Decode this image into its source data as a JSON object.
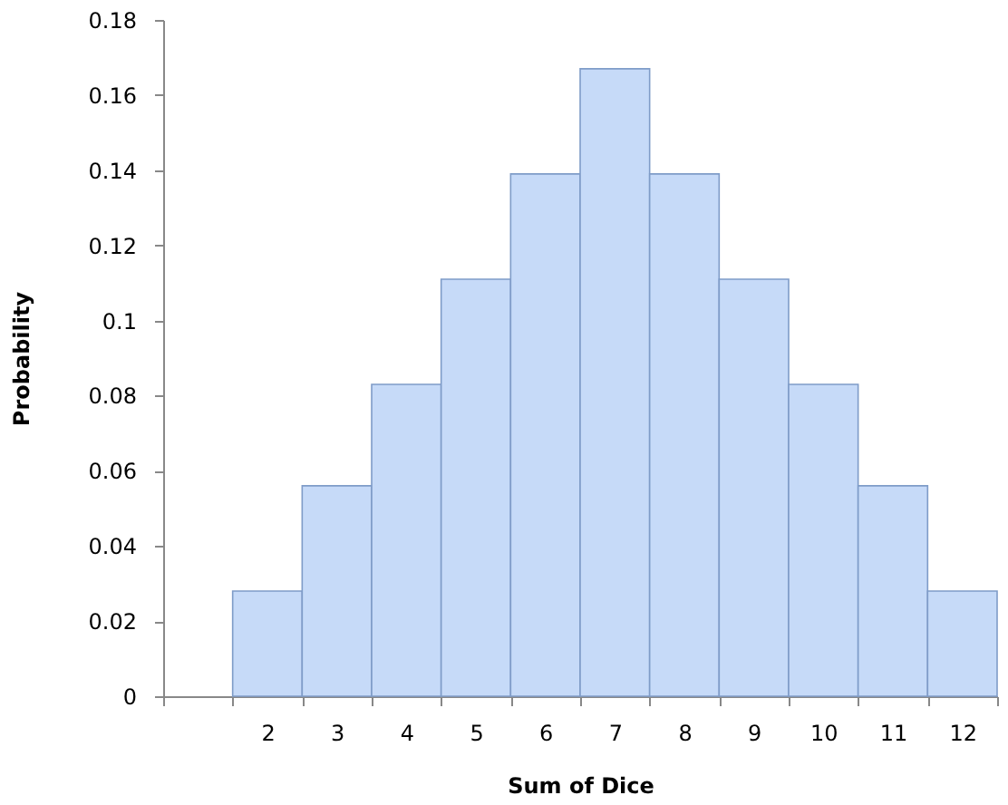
{
  "chart_data": {
    "type": "bar",
    "xlabel": "Sum of Dice",
    "ylabel": "Probability",
    "categories": [
      null,
      "2",
      "3",
      "4",
      "5",
      "6",
      "7",
      "8",
      "9",
      "10",
      "11",
      "12"
    ],
    "values": [
      null,
      0.028,
      0.056,
      0.083,
      0.111,
      0.139,
      0.167,
      0.139,
      0.111,
      0.083,
      0.056,
      0.028
    ],
    "color": "#c6daf8",
    "ylim": [
      0,
      0.18
    ],
    "yticks": [
      0,
      0.02,
      0.04,
      0.06,
      0.08,
      0.1,
      0.12,
      0.14,
      0.16,
      0.18
    ],
    "grid": false
  }
}
